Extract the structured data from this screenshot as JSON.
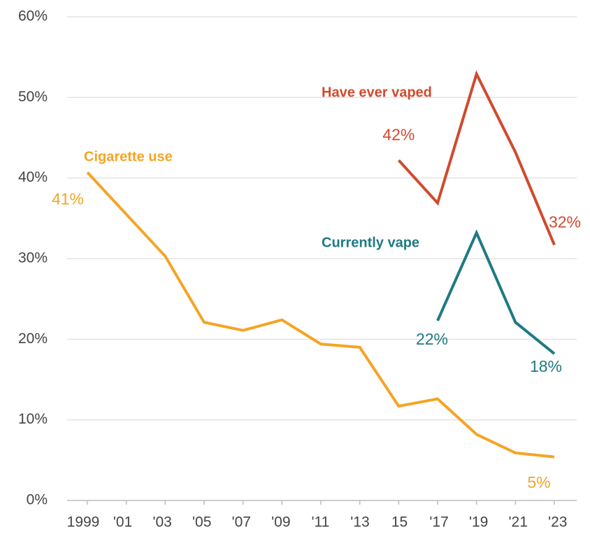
{
  "chart_data": {
    "type": "line",
    "x": [
      1999,
      2001,
      2003,
      2005,
      2007,
      2009,
      2011,
      2013,
      2015,
      2017,
      2019,
      2021,
      2023
    ],
    "xlim": [
      1999,
      2023
    ],
    "xticks": [
      {
        "value": 1999,
        "label": "1999"
      },
      {
        "value": 2001,
        "label": "'01"
      },
      {
        "value": 2003,
        "label": "'03"
      },
      {
        "value": 2005,
        "label": "'05"
      },
      {
        "value": 2007,
        "label": "'07"
      },
      {
        "value": 2009,
        "label": "'09"
      },
      {
        "value": 2011,
        "label": "'11"
      },
      {
        "value": 2013,
        "label": "'13"
      },
      {
        "value": 2015,
        "label": "15"
      },
      {
        "value": 2017,
        "label": "'17"
      },
      {
        "value": 2019,
        "label": "'19"
      },
      {
        "value": 2021,
        "label": "'21"
      },
      {
        "value": 2023,
        "label": "'23"
      }
    ],
    "ylim": [
      0,
      60
    ],
    "yticks": [
      {
        "value": 0,
        "label": "0%"
      },
      {
        "value": 10,
        "label": "10%"
      },
      {
        "value": 20,
        "label": "20%"
      },
      {
        "value": 30,
        "label": "30%"
      },
      {
        "value": 40,
        "label": "40%"
      },
      {
        "value": 50,
        "label": "50%"
      },
      {
        "value": 60,
        "label": "60%"
      }
    ],
    "grid": true,
    "series": [
      {
        "name": "Cigarette use",
        "color": "#f5a425",
        "values": [
          40.7,
          35.5,
          30.3,
          22.1,
          21.1,
          22.4,
          19.4,
          19.0,
          11.7,
          12.6,
          8.2,
          5.9,
          5.4
        ],
        "value_labels": [
          "41%",
          null,
          null,
          null,
          null,
          null,
          null,
          null,
          null,
          null,
          null,
          null,
          "5%"
        ]
      },
      {
        "name": "Have ever vaped",
        "color": "#d04a2e",
        "values": [
          null,
          null,
          null,
          null,
          null,
          null,
          null,
          null,
          42.2,
          36.9,
          52.9,
          43.2,
          31.7
        ],
        "value_labels": [
          null,
          null,
          null,
          null,
          null,
          null,
          null,
          null,
          "42%",
          null,
          null,
          null,
          "32%"
        ]
      },
      {
        "name": "Currently vape",
        "color": "#1f7a83",
        "values": [
          null,
          null,
          null,
          null,
          null,
          null,
          null,
          null,
          null,
          22.3,
          33.2,
          22.1,
          18.2
        ],
        "value_labels": [
          null,
          null,
          null,
          null,
          null,
          null,
          null,
          null,
          null,
          "22%",
          null,
          null,
          "18%"
        ]
      }
    ]
  }
}
